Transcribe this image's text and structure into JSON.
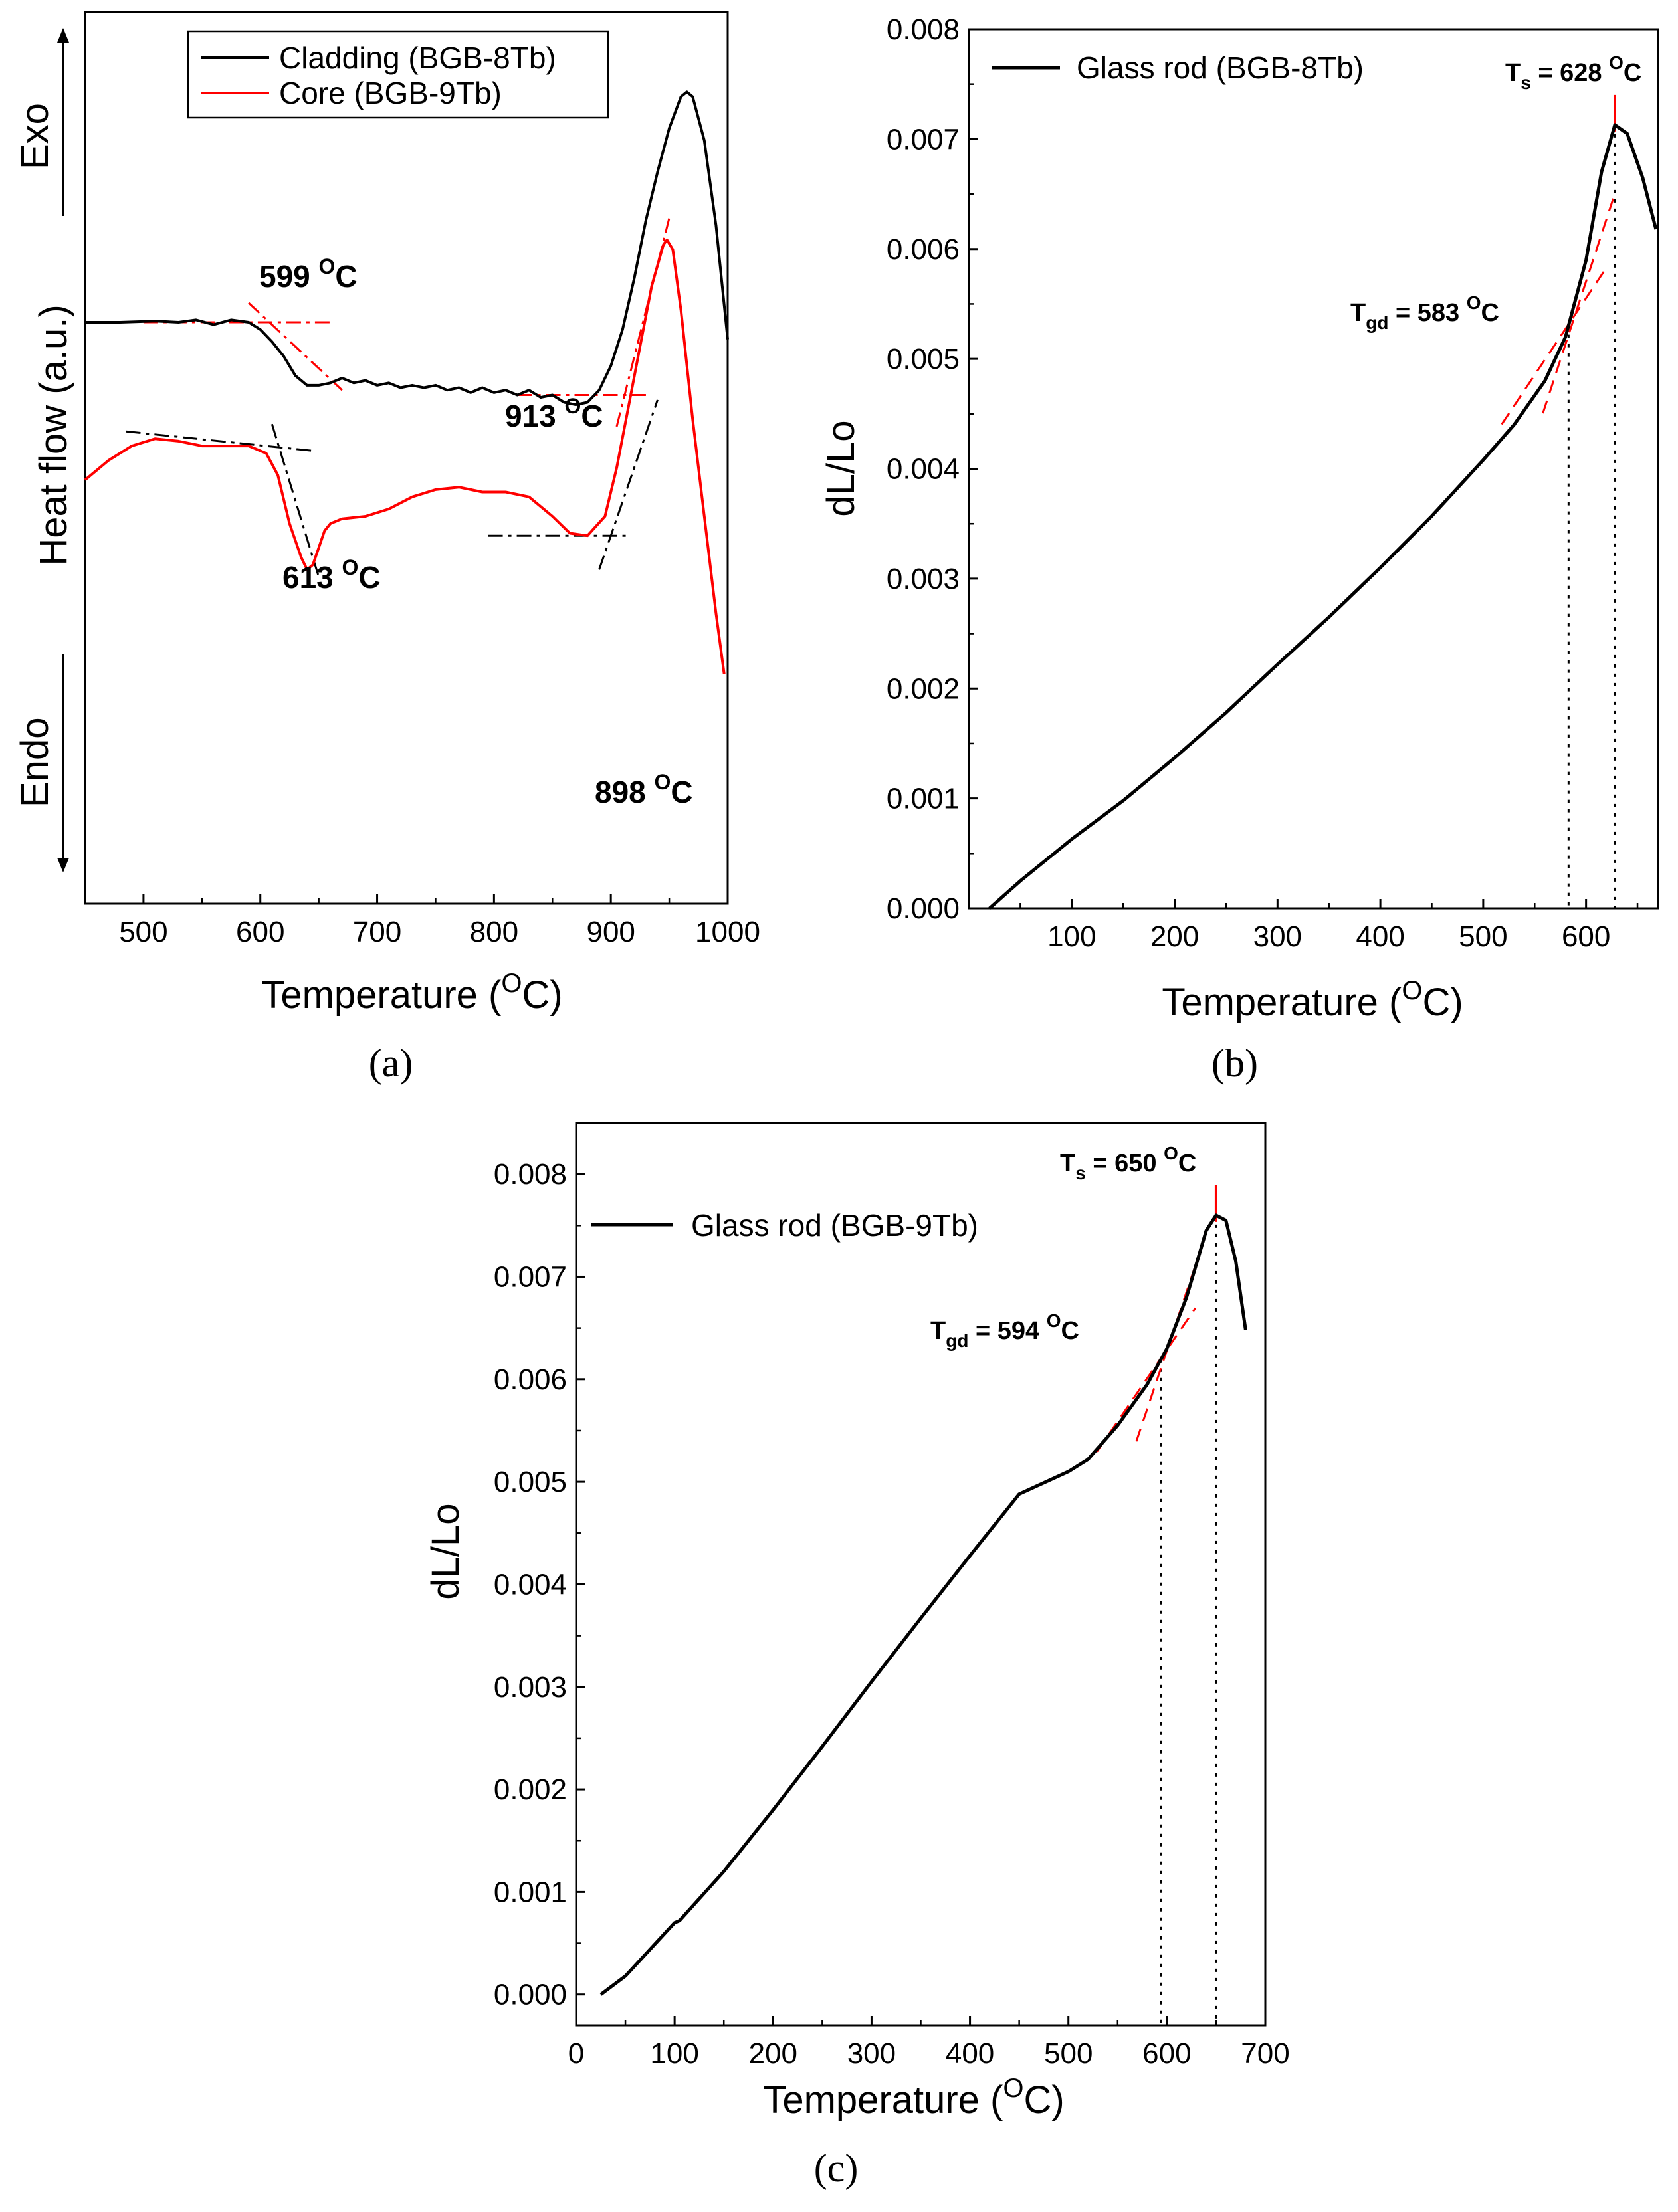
{
  "chart_data": [
    {
      "id": "a",
      "type": "line",
      "panel_label": "(a)",
      "xlabel": "Temperature (",
      "xlabel_sup": "O",
      "xlabel_end": "C)",
      "ylabel": "Heat flow (a.u.)",
      "exo_label": "Exo",
      "endo_label": "Endo",
      "xlim": [
        450,
        1000
      ],
      "xticks": [
        500,
        600,
        700,
        800,
        900,
        1000
      ],
      "series": [
        {
          "name": "Cladding (BGB-8Tb)",
          "color": "#000000",
          "x": [
            450,
            480,
            510,
            530,
            545,
            560,
            575,
            590,
            600,
            610,
            620,
            630,
            640,
            650,
            660,
            670,
            680,
            690,
            700,
            710,
            720,
            730,
            740,
            750,
            760,
            770,
            780,
            790,
            800,
            810,
            820,
            830,
            840,
            850,
            860,
            870,
            880,
            890,
            900,
            910,
            920,
            930,
            940,
            950,
            960,
            965,
            970,
            980,
            990,
            1000
          ],
          "y": [
            0.0,
            0.0,
            0.005,
            0.0,
            0.01,
            -0.01,
            0.01,
            0.0,
            -0.03,
            -0.08,
            -0.14,
            -0.22,
            -0.26,
            -0.26,
            -0.25,
            -0.23,
            -0.25,
            -0.24,
            -0.26,
            -0.25,
            -0.27,
            -0.26,
            -0.27,
            -0.26,
            -0.28,
            -0.27,
            -0.29,
            -0.27,
            -0.29,
            -0.28,
            -0.3,
            -0.28,
            -0.31,
            -0.3,
            -0.33,
            -0.34,
            -0.33,
            -0.28,
            -0.18,
            -0.03,
            0.18,
            0.42,
            0.62,
            0.8,
            0.93,
            0.95,
            0.93,
            0.75,
            0.4,
            -0.07
          ]
        },
        {
          "name": "Core (BGB-9Tb)",
          "color": "#ff0000",
          "x": [
            450,
            470,
            490,
            510,
            530,
            550,
            570,
            590,
            605,
            615,
            625,
            635,
            640,
            645,
            650,
            655,
            660,
            670,
            690,
            710,
            730,
            750,
            770,
            790,
            810,
            830,
            850,
            865,
            880,
            895,
            905,
            915,
            925,
            935,
            945,
            948,
            953,
            960,
            970,
            980,
            990,
            997
          ],
          "y": [
            -0.65,
            -0.57,
            -0.51,
            -0.48,
            -0.49,
            -0.51,
            -0.51,
            -0.51,
            -0.54,
            -0.63,
            -0.83,
            -0.97,
            -1.02,
            -1.0,
            -0.93,
            -0.86,
            -0.83,
            -0.81,
            -0.8,
            -0.77,
            -0.72,
            -0.69,
            -0.68,
            -0.7,
            -0.7,
            -0.72,
            -0.8,
            -0.87,
            -0.88,
            -0.8,
            -0.6,
            -0.35,
            -0.1,
            0.15,
            0.32,
            0.34,
            0.3,
            0.05,
            -0.4,
            -0.8,
            -1.2,
            -1.45
          ]
        }
      ],
      "legend": [
        {
          "label": "Cladding (BGB-8Tb)",
          "color": "#000000"
        },
        {
          "label": "Core (BGB-9Tb)",
          "color": "#ff0000"
        }
      ],
      "annotations": [
        {
          "text": "599 ",
          "sup": "O",
          "end": "C"
        },
        {
          "text": "913 ",
          "sup": "O",
          "end": "C"
        },
        {
          "text": "613 ",
          "sup": "O",
          "end": "C"
        },
        {
          "text": "898 ",
          "sup": "O",
          "end": "C"
        }
      ]
    },
    {
      "id": "b",
      "type": "line",
      "panel_label": "(b)",
      "xlabel": "Temperature (",
      "xlabel_sup": "O",
      "xlabel_end": "C)",
      "ylabel": "dL/Lo",
      "xlim": [
        0,
        670
      ],
      "ylim": [
        0,
        0.008
      ],
      "xticks": [
        100,
        200,
        300,
        400,
        500,
        600
      ],
      "yticks": [
        "0.000",
        "0.001",
        "0.002",
        "0.003",
        "0.004",
        "0.005",
        "0.006",
        "0.007",
        "0.008"
      ],
      "series": [
        {
          "name": "Glass rod (BGB-8Tb)",
          "color": "#000000",
          "x": [
            20,
            50,
            100,
            150,
            200,
            250,
            300,
            350,
            400,
            450,
            500,
            530,
            560,
            580,
            600,
            615,
            628,
            640,
            655,
            668
          ],
          "y": [
            0.0,
            0.00025,
            0.00063,
            0.00098,
            0.00137,
            0.00178,
            0.00222,
            0.00265,
            0.0031,
            0.00357,
            0.00408,
            0.0044,
            0.0048,
            0.0052,
            0.0059,
            0.0067,
            0.00713,
            0.00705,
            0.00665,
            0.00618
          ]
        }
      ],
      "legend": [
        {
          "label": "Glass rod (BGB-8Tb)",
          "color": "#000000"
        }
      ],
      "markers": {
        "Tgd": 583,
        "Ts": 628
      },
      "annotations": [
        {
          "prefix": "T",
          "sub": "s",
          "text": " = 628 ",
          "sup": "O",
          "end": "C"
        },
        {
          "prefix": "T",
          "sub": "gd",
          "text": " = 583 ",
          "sup": "O",
          "end": "C"
        }
      ]
    },
    {
      "id": "c",
      "type": "line",
      "panel_label": "(c)",
      "xlabel": "Temperature (",
      "xlabel_sup": "O",
      "xlabel_end": "C)",
      "ylabel": "dL/Lo",
      "xlim": [
        0,
        700
      ],
      "ylim": [
        -0.0003,
        0.0085
      ],
      "xticks": [
        0,
        100,
        200,
        300,
        400,
        500,
        600,
        700
      ],
      "yticks": [
        "0.000",
        "0.001",
        "0.002",
        "0.003",
        "0.004",
        "0.005",
        "0.006",
        "0.007",
        "0.008"
      ],
      "series": [
        {
          "name": "Glass rod (BGB-9Tb)",
          "color": "#000000",
          "x": [
            25,
            50,
            100,
            105,
            150,
            200,
            250,
            300,
            350,
            400,
            450,
            500,
            520,
            550,
            580,
            600,
            620,
            640,
            650,
            660,
            670,
            680
          ],
          "y": [
            0.0,
            0.00018,
            0.0007,
            0.00072,
            0.0012,
            0.0018,
            0.00242,
            0.00305,
            0.00367,
            0.00428,
            0.00488,
            0.0051,
            0.00522,
            0.00555,
            0.00595,
            0.0063,
            0.0068,
            0.00745,
            0.0076,
            0.00755,
            0.00715,
            0.00648
          ]
        }
      ],
      "legend": [
        {
          "label": "Glass rod (BGB-9Tb)",
          "color": "#000000"
        }
      ],
      "markers": {
        "Tgd": 594,
        "Ts": 650
      },
      "annotations": [
        {
          "prefix": "T",
          "sub": "s",
          "text": " = 650 ",
          "sup": "O",
          "end": "C"
        },
        {
          "prefix": "T",
          "sub": "gd",
          "text": " = 594 ",
          "sup": "O",
          "end": "C"
        }
      ]
    }
  ]
}
